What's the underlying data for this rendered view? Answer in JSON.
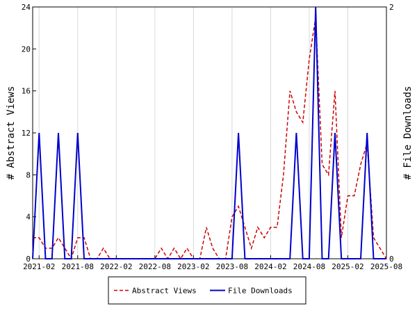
{
  "chart_data": {
    "type": "line",
    "title": "",
    "x": [
      "2021-01",
      "2021-02",
      "2021-03",
      "2021-04",
      "2021-05",
      "2021-06",
      "2021-07",
      "2021-08",
      "2021-09",
      "2021-10",
      "2021-11",
      "2021-12",
      "2022-01",
      "2022-02",
      "2022-03",
      "2022-04",
      "2022-05",
      "2022-06",
      "2022-07",
      "2022-08",
      "2022-09",
      "2022-10",
      "2022-11",
      "2022-12",
      "2023-01",
      "2023-02",
      "2023-03",
      "2023-04",
      "2023-05",
      "2023-06",
      "2023-07",
      "2023-08",
      "2023-09",
      "2023-10",
      "2023-11",
      "2023-12",
      "2024-01",
      "2024-02",
      "2024-03",
      "2024-04",
      "2024-05",
      "2024-06",
      "2024-07",
      "2024-08",
      "2024-09",
      "2024-10",
      "2024-11",
      "2024-12",
      "2025-01",
      "2025-02",
      "2025-03",
      "2025-04",
      "2025-05",
      "2025-06",
      "2025-07",
      "2025-08"
    ],
    "x_ticks": [
      "2021-02",
      "2021-08",
      "2022-02",
      "2022-08",
      "2023-02",
      "2023-08",
      "2024-02",
      "2024-08",
      "2025-02",
      "2025-08"
    ],
    "xlim": [
      "2021-01",
      "2025-08"
    ],
    "ylabel": "# Abstract Views",
    "ylim": [
      0,
      24
    ],
    "y_ticks": [
      0,
      4,
      8,
      12,
      16,
      20,
      24
    ],
    "y2label": "# File Downloads",
    "y2lim": [
      0,
      2
    ],
    "y2_ticks": [
      0,
      2
    ],
    "legend_position": "bottom",
    "series": [
      {
        "name": "Abstract Views",
        "axis": "left",
        "color": "#cc0000",
        "style": "dashed",
        "values": [
          2,
          2,
          1,
          1,
          2,
          1,
          0,
          2,
          2,
          0,
          0,
          1,
          0,
          0,
          0,
          0,
          0,
          0,
          0,
          0,
          1,
          0,
          1,
          0,
          1,
          0,
          0,
          3,
          1,
          0,
          0,
          4,
          5,
          3,
          1,
          3,
          2,
          3,
          3,
          8,
          16,
          14,
          13,
          19,
          23,
          9,
          8,
          16,
          2,
          6,
          6,
          9,
          11,
          2,
          1,
          0
        ]
      },
      {
        "name": "File Downloads",
        "axis": "right",
        "color": "#0000cc",
        "style": "solid",
        "values": [
          0,
          1,
          0,
          0,
          1,
          0,
          0,
          1,
          0,
          0,
          0,
          0,
          0,
          0,
          0,
          0,
          0,
          0,
          0,
          0,
          0,
          0,
          0,
          0,
          0,
          0,
          0,
          0,
          0,
          0,
          0,
          0,
          1,
          0,
          0,
          0,
          0,
          0,
          0,
          0,
          0,
          1,
          0,
          0,
          2,
          0,
          0,
          1,
          0,
          0,
          0,
          0,
          1,
          0,
          0,
          0
        ]
      }
    ]
  }
}
